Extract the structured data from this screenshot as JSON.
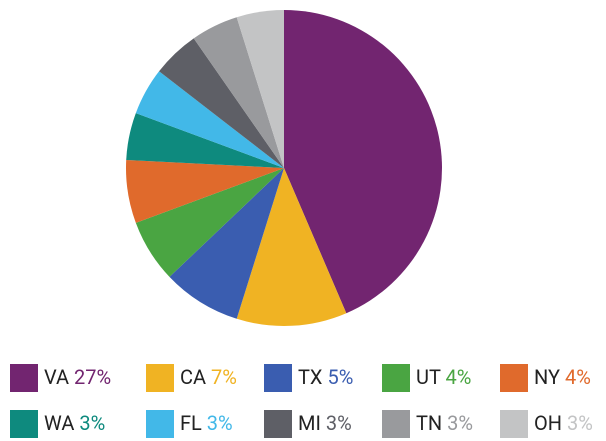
{
  "chart_data": {
    "type": "pie",
    "categories": [
      "VA",
      "CA",
      "TX",
      "UT",
      "NY",
      "WA",
      "FL",
      "MI",
      "TN",
      "OH"
    ],
    "values": [
      27,
      7,
      5,
      4,
      4,
      3,
      3,
      3,
      3,
      3
    ],
    "value_labels": [
      "27%",
      "7%",
      "5%",
      "4%",
      "4%",
      "3%",
      "3%",
      "3%",
      "3%",
      "3%"
    ],
    "colors": [
      "#722570",
      "#f0b323",
      "#3a5db0",
      "#4aa542",
      "#e06a2c",
      "#0e8a7e",
      "#42b8e8",
      "#5e5f66",
      "#999a9d",
      "#c3c4c5"
    ]
  }
}
